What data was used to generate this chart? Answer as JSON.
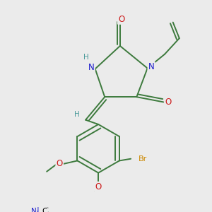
{
  "background_color": "#ebebeb",
  "bond_color": "#3d7a3d",
  "atom_colors": {
    "N": "#1a1acc",
    "O": "#cc1a1a",
    "Br": "#cc8800",
    "H": "#4a9a9a",
    "C": "#000000"
  },
  "figsize": [
    3.0,
    3.0
  ],
  "dpi": 100
}
